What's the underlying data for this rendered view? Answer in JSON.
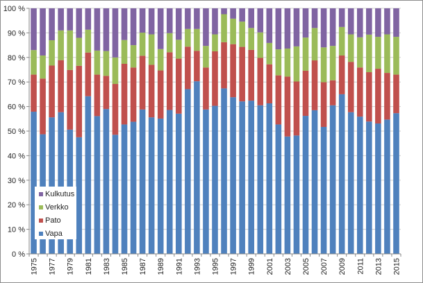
{
  "chart_data": {
    "type": "bar",
    "stacked": "percent",
    "title": "",
    "xlabel": "",
    "ylabel": "",
    "ylim": [
      0,
      100
    ],
    "yticks": [
      "0 %",
      "10 %",
      "20 %",
      "30 %",
      "40 %",
      "50 %",
      "60 %",
      "70 %",
      "80 %",
      "90 %",
      "100 %"
    ],
    "grid": true,
    "legend_position": "bottom-left inside",
    "categories": [
      1975,
      1976,
      1977,
      1978,
      1979,
      1980,
      1981,
      1982,
      1983,
      1984,
      1985,
      1986,
      1987,
      1988,
      1989,
      1990,
      1991,
      1992,
      1993,
      1994,
      1995,
      1996,
      1997,
      1998,
      1999,
      2000,
      2001,
      2002,
      2003,
      2004,
      2005,
      2006,
      2007,
      2008,
      2009,
      2010,
      2011,
      2012,
      2013,
      2014,
      2015
    ],
    "series": [
      {
        "name": "Vapa",
        "color": "#4F81BD",
        "values": [
          57.9,
          48.7,
          55.6,
          57.7,
          50.6,
          47.5,
          64.2,
          56.1,
          59.0,
          48.5,
          52.7,
          53.8,
          58.8,
          55.6,
          55.1,
          58.6,
          57.1,
          67.1,
          70.3,
          58.8,
          60.3,
          67.4,
          63.8,
          62.1,
          62.4,
          60.5,
          61.3,
          52.7,
          47.8,
          48.2,
          56.2,
          58.5,
          51.7,
          60.5,
          65.0,
          57.7,
          55.9,
          53.9,
          53.1,
          54.7,
          57.3
        ]
      },
      {
        "name": "Pato",
        "color": "#C0504D",
        "values": [
          15.1,
          22.7,
          21.1,
          21.2,
          24.3,
          29.1,
          17.8,
          16.9,
          13.5,
          20.7,
          24.7,
          22.1,
          21.9,
          21.4,
          19.6,
          23.5,
          22.4,
          17.3,
          12.4,
          17.1,
          22.2,
          18.8,
          21.6,
          22.2,
          20.7,
          19.3,
          15.9,
          20.0,
          24.4,
          22.0,
          18.4,
          20.3,
          18.2,
          10.2,
          15.8,
          20.5,
          20.0,
          20.1,
          22.3,
          19.0,
          15.7
        ]
      },
      {
        "name": "Verkko",
        "color": "#9BBB59",
        "values": [
          10.0,
          9.4,
          10.3,
          12.1,
          16.1,
          11.4,
          9.3,
          9.8,
          10.1,
          10.8,
          9.7,
          9.1,
          9.4,
          12.4,
          8.7,
          7.8,
          7.7,
          7.2,
          8.9,
          8.8,
          6.9,
          11.4,
          10.4,
          10.3,
          8.9,
          10.4,
          8.7,
          10.6,
          11.4,
          14.3,
          13.5,
          13.2,
          14.2,
          14.0,
          11.6,
          11.2,
          12.3,
          15.3,
          13.0,
          15.7,
          15.4
        ]
      },
      {
        "name": "Kulkutus",
        "color": "#8064A2",
        "values": [
          17.0,
          19.2,
          13.0,
          9.0,
          9.0,
          12.0,
          8.7,
          17.2,
          17.4,
          20.0,
          12.9,
          15.0,
          9.9,
          10.6,
          16.6,
          10.1,
          12.8,
          8.4,
          8.4,
          15.3,
          10.6,
          2.4,
          4.2,
          5.4,
          8.0,
          9.8,
          14.1,
          16.7,
          16.4,
          15.5,
          11.9,
          8.0,
          15.9,
          15.3,
          7.6,
          10.6,
          11.8,
          10.7,
          11.6,
          10.6,
          11.6
        ]
      }
    ]
  }
}
